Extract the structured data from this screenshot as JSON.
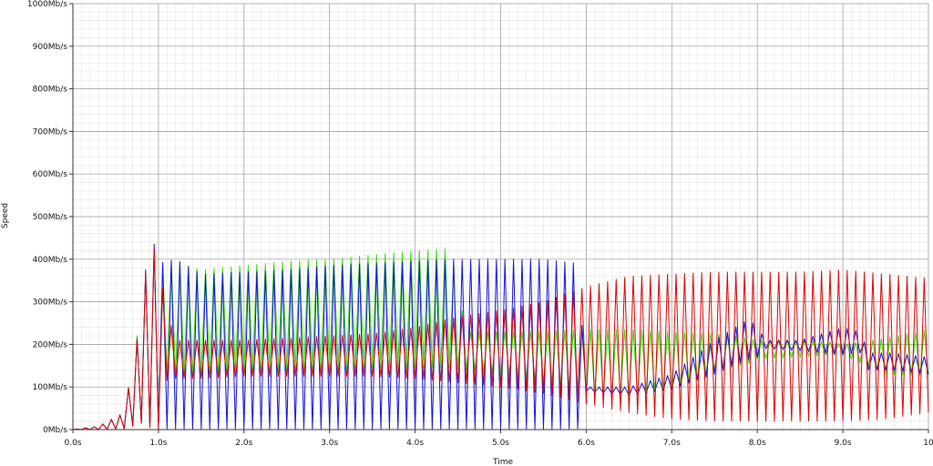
{
  "chart_data": {
    "type": "line",
    "title": "",
    "xlabel": "Time",
    "ylabel": "Speed",
    "xlim": [
      0,
      10
    ],
    "ylim": [
      0,
      1000
    ],
    "x_ticks": [
      {
        "value": 0,
        "label": "0.0s"
      },
      {
        "value": 1,
        "label": "1.0s"
      },
      {
        "value": 2,
        "label": "2.0s"
      },
      {
        "value": 3,
        "label": "3.0s"
      },
      {
        "value": 4,
        "label": "4.0s"
      },
      {
        "value": 5,
        "label": "5.0s"
      },
      {
        "value": 6,
        "label": "6.0s"
      },
      {
        "value": 7,
        "label": "7.0s"
      },
      {
        "value": 8,
        "label": "8.0s"
      },
      {
        "value": 9,
        "label": "9.0s"
      },
      {
        "value": 10,
        "label": "10"
      }
    ],
    "y_ticks": [
      {
        "value": 0,
        "label": "0Mb/s"
      },
      {
        "value": 100,
        "label": "100Mb/s"
      },
      {
        "value": 200,
        "label": "200Mb/s"
      },
      {
        "value": 300,
        "label": "300Mb/s"
      },
      {
        "value": 400,
        "label": "400Mb/s"
      },
      {
        "value": 500,
        "label": "500Mb/s"
      },
      {
        "value": 600,
        "label": "600Mb/s"
      },
      {
        "value": 700,
        "label": "700Mb/s"
      },
      {
        "value": 800,
        "label": "800Mb/s"
      },
      {
        "value": 900,
        "label": "900Mb/s"
      },
      {
        "value": 1000,
        "label": "1000Mb/s"
      }
    ],
    "grid": true,
    "legend": "none",
    "series": [
      {
        "color": "#33dd00",
        "envelope": {
          "x": [
            0.0,
            0.3,
            0.6,
            0.8,
            0.9,
            1.0,
            1.1,
            1.2,
            1.5,
            2.0,
            2.5,
            3.0,
            3.5,
            4.0,
            4.4,
            4.6,
            5.0,
            5.5,
            5.9,
            6.0,
            6.5,
            7.0,
            7.5,
            7.9,
            8.0,
            8.5,
            8.9,
            9.0,
            9.5,
            10.0
          ],
          "high": [
            0,
            8,
            40,
            280,
            460,
            380,
            395,
            395,
            375,
            385,
            395,
            400,
            410,
            420,
            425,
            230,
            230,
            230,
            235,
            235,
            235,
            230,
            225,
            215,
            210,
            210,
            205,
            200,
            215,
            235
          ],
          "low": [
            0,
            0,
            2,
            15,
            5,
            3,
            125,
            125,
            130,
            135,
            140,
            140,
            145,
            145,
            145,
            140,
            130,
            110,
            95,
            85,
            80,
            95,
            135,
            155,
            165,
            170,
            175,
            175,
            130,
            125
          ]
        }
      },
      {
        "color": "#1010dd",
        "envelope": {
          "x": [
            0.0,
            0.3,
            0.6,
            0.8,
            0.9,
            1.0,
            1.1,
            1.2,
            1.5,
            2.0,
            2.5,
            3.0,
            3.5,
            4.0,
            4.4,
            4.5,
            5.0,
            5.5,
            5.9,
            6.0,
            6.5,
            7.0,
            7.5,
            7.9,
            8.0,
            8.1,
            8.5,
            9.0,
            9.2,
            9.3,
            9.6,
            10.0
          ],
          "high": [
            0,
            8,
            40,
            270,
            480,
            390,
            395,
            400,
            365,
            370,
            375,
            385,
            390,
            395,
            400,
            400,
            400,
            400,
            390,
            100,
            100,
            130,
            210,
            260,
            240,
            210,
            210,
            240,
            230,
            180,
            180,
            170
          ],
          "low": [
            0,
            0,
            2,
            15,
            5,
            2,
            2,
            2,
            2,
            2,
            2,
            2,
            2,
            2,
            2,
            2,
            2,
            2,
            2,
            90,
            80,
            95,
            130,
            165,
            170,
            190,
            185,
            175,
            180,
            140,
            140,
            130
          ]
        }
      },
      {
        "color": "#dd0000",
        "envelope": {
          "x": [
            0.0,
            0.3,
            0.6,
            0.8,
            0.9,
            1.0,
            1.1,
            1.2,
            1.5,
            2.0,
            2.5,
            3.0,
            3.5,
            4.0,
            4.5,
            5.0,
            5.5,
            6.0,
            6.5,
            7.0,
            7.5,
            8.0,
            8.5,
            9.0,
            9.5,
            10.0
          ],
          "high": [
            0,
            8,
            40,
            270,
            470,
            385,
            280,
            210,
            210,
            210,
            215,
            220,
            225,
            240,
            265,
            280,
            300,
            335,
            360,
            365,
            370,
            370,
            370,
            375,
            365,
            355
          ],
          "low": [
            0,
            0,
            2,
            15,
            5,
            2,
            115,
            120,
            120,
            125,
            125,
            125,
            125,
            120,
            110,
            100,
            85,
            60,
            40,
            25,
            20,
            20,
            20,
            20,
            25,
            40
          ]
        }
      }
    ]
  }
}
